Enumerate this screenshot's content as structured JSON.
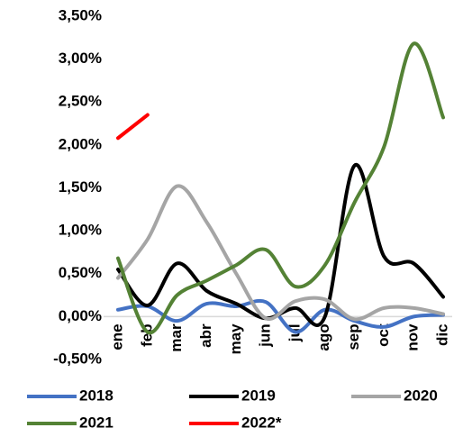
{
  "chart_data": {
    "type": "line",
    "categories": [
      "ene",
      "feb",
      "mar",
      "abr",
      "may",
      "jun",
      "jul",
      "ago",
      "sep",
      "oct",
      "nov",
      "dic"
    ],
    "ylim": [
      -0.5,
      3.5
    ],
    "yticks": [
      {
        "value": -0.5,
        "label": "-0,50%"
      },
      {
        "value": 0,
        "label": "0,00%"
      },
      {
        "value": 0.5,
        "label": "0,50%"
      },
      {
        "value": 1,
        "label": "1,00%"
      },
      {
        "value": 1.5,
        "label": "1,50%"
      },
      {
        "value": 2,
        "label": "2,00%"
      },
      {
        "value": 2.5,
        "label": "2,50%"
      },
      {
        "value": 3,
        "label": "3,00%"
      },
      {
        "value": 3.5,
        "label": "3,50%"
      }
    ],
    "grid": false,
    "series": [
      {
        "name": "2018",
        "color": "#4472c4",
        "values": [
          0.08,
          0.12,
          -0.05,
          0.15,
          0.12,
          0.17,
          -0.18,
          0.08,
          -0.05,
          -0.12,
          0.0,
          0.02
        ]
      },
      {
        "name": "2019",
        "color": "#000000",
        "values": [
          0.55,
          0.13,
          0.62,
          0.3,
          0.15,
          -0.02,
          0.1,
          0.0,
          1.76,
          0.7,
          0.62,
          0.23
        ]
      },
      {
        "name": "2020",
        "color": "#a5a5a5",
        "values": [
          0.45,
          0.9,
          1.52,
          1.1,
          0.5,
          -0.02,
          0.18,
          0.2,
          -0.03,
          0.1,
          0.1,
          0.03
        ]
      },
      {
        "name": "2021",
        "color": "#548235",
        "values": [
          0.68,
          -0.18,
          0.25,
          0.42,
          0.6,
          0.78,
          0.35,
          0.6,
          1.33,
          1.98,
          3.18,
          2.32
        ]
      },
      {
        "name": "2022*",
        "color": "#ff0000",
        "values": [
          2.08,
          2.35,
          null,
          null,
          null,
          null,
          null,
          null,
          null,
          null,
          null,
          null
        ]
      }
    ]
  }
}
